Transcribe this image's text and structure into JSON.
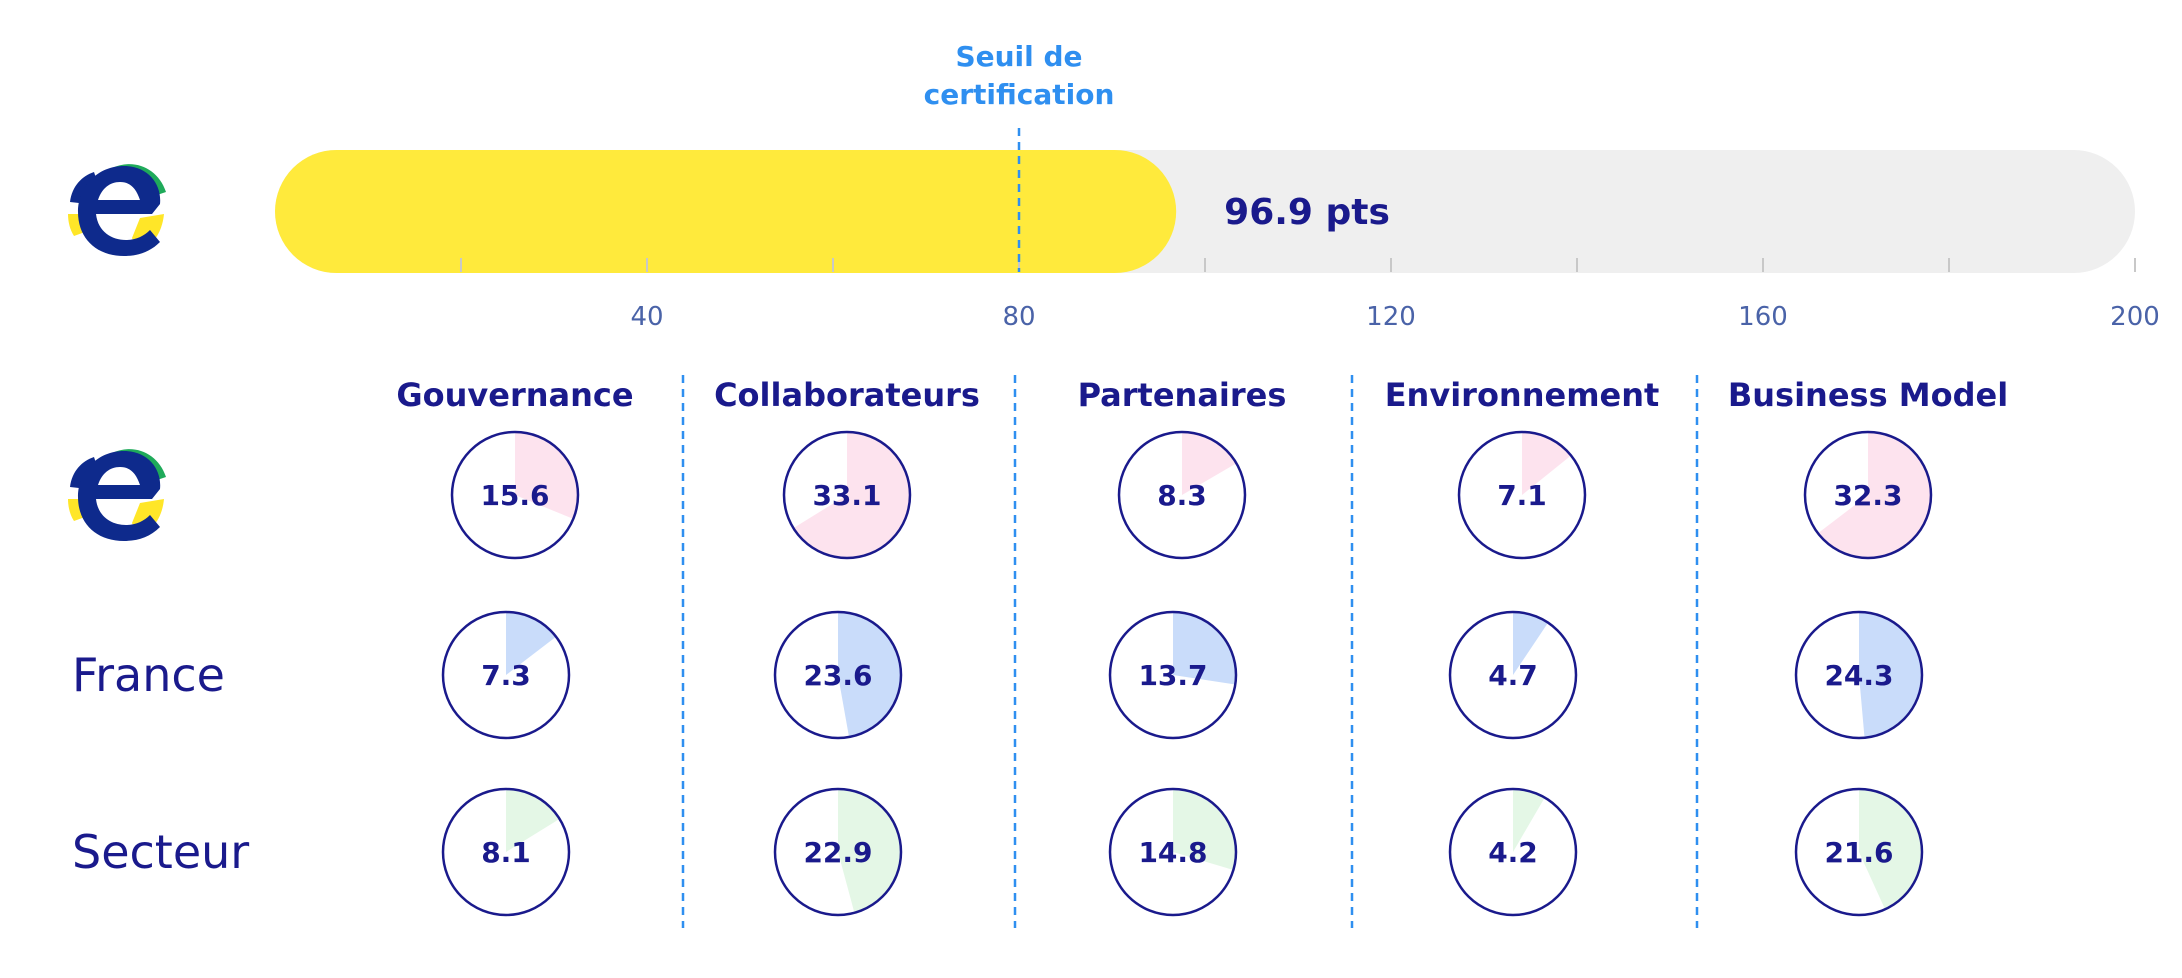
{
  "colors": {
    "navy": "#1a1a8c",
    "blue_accent": "#2f8ff0",
    "yellow": "#ffea3c",
    "track": "#efefef",
    "tick": "#c8c8c8",
    "tick_label": "#4a63a8",
    "pink": "#fde3ee",
    "light_blue": "#c9dcfa",
    "light_green": "#e4f7e6",
    "logo_green": "#1faa5a",
    "logo_yellow": "#ffe628",
    "logo_navy": "#0e2a8c"
  },
  "chart_data": [
    {
      "type": "bar",
      "orientation": "horizontal",
      "value": 96.9,
      "value_label": "96.9 pts",
      "xlim": [
        0,
        200
      ],
      "major_ticks": [
        40,
        80,
        120,
        160,
        200
      ],
      "minor_ticks": [
        20,
        60,
        100,
        140,
        180
      ],
      "threshold": {
        "value": 80,
        "label_line1": "Seuil de",
        "label_line2": "certification"
      }
    },
    {
      "type": "pie",
      "max_value": 50,
      "columns": [
        "Gouvernance",
        "Collaborateurs",
        "Partenaires",
        "Environnement",
        "Business Model"
      ],
      "rows": [
        {
          "label": "",
          "kind": "logo",
          "color_key": "pink",
          "values": [
            15.6,
            33.1,
            8.3,
            7.1,
            32.3
          ]
        },
        {
          "label": "France",
          "kind": "text",
          "color_key": "light_blue",
          "values": [
            7.3,
            23.6,
            13.7,
            4.7,
            24.3
          ]
        },
        {
          "label": "Secteur",
          "kind": "text",
          "color_key": "light_green",
          "values": [
            8.1,
            22.9,
            14.8,
            4.2,
            21.6
          ]
        }
      ]
    }
  ]
}
